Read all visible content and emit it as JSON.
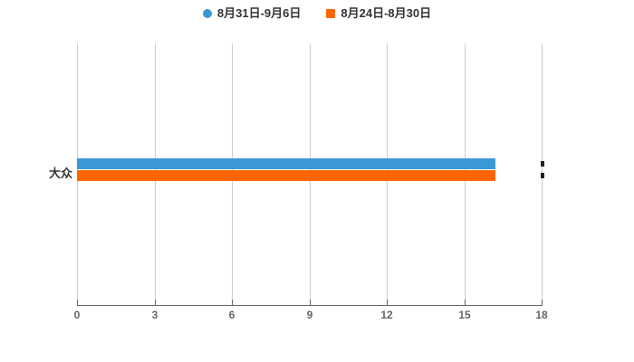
{
  "chart_data": {
    "type": "bar",
    "orientation": "horizontal",
    "title": "",
    "xlabel": "",
    "ylabel": "",
    "categories": [
      "大众"
    ],
    "series": [
      {
        "name": "8月31日-9月6日",
        "color": "#3A99D4",
        "marker": "circle",
        "values": [
          16.2
        ]
      },
      {
        "name": "8月24日-8月30日",
        "color": "#FF6600",
        "marker": "square",
        "values": [
          16.2
        ]
      }
    ],
    "xlim": [
      0,
      18
    ],
    "x_ticks": [
      0,
      3,
      6,
      9,
      12,
      15,
      18
    ],
    "grid": "vertical-gridlines",
    "legend_position": "top-center"
  },
  "legend": {
    "items": [
      {
        "label": "8月31日-9月6日",
        "color": "#3A99D4",
        "shape": "circle"
      },
      {
        "label": "8月24日-8月30日",
        "color": "#FF6600",
        "shape": "square"
      }
    ]
  },
  "colors": {
    "background": "#FFFFFF",
    "gridline": "#CCCCCC",
    "axis_line": "#666666",
    "tick_label": "#666666",
    "category_label": "#333333",
    "legend_text": "#333333"
  }
}
